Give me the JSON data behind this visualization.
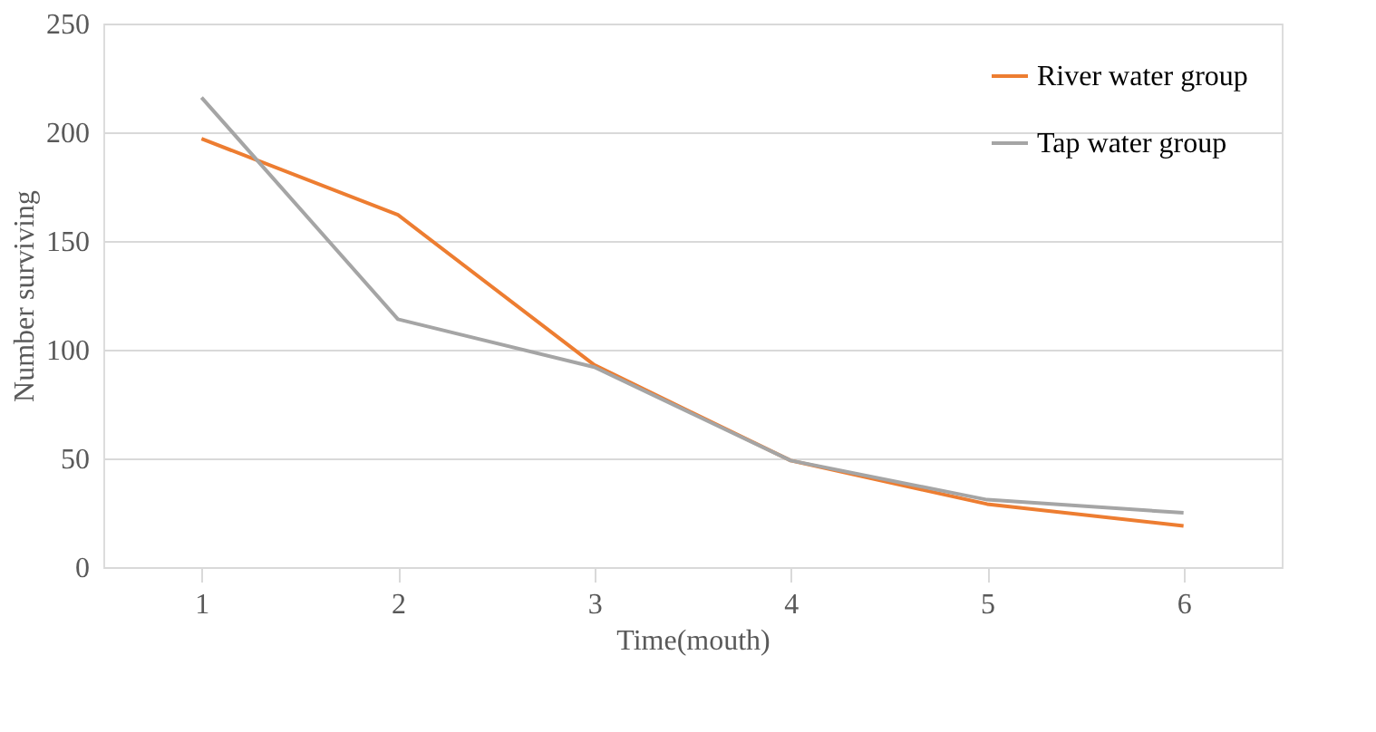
{
  "chart_data": {
    "type": "line",
    "xlabel": "Time(mouth)",
    "ylabel": "Number surviving",
    "categories": [
      "1",
      "2",
      "3",
      "4",
      "5",
      "6"
    ],
    "series": [
      {
        "name": "River water group",
        "color": "#ed7d31",
        "values": [
          197,
          162,
          93,
          49,
          29,
          19
        ]
      },
      {
        "name": "Tap water group",
        "color": "#a5a5a5",
        "values": [
          216,
          114,
          92,
          49,
          31,
          25
        ]
      }
    ],
    "ylim": [
      0,
      250
    ],
    "yticks": [
      0,
      50,
      100,
      150,
      200,
      250
    ],
    "grid": "y",
    "legend": "top right",
    "marker": "none",
    "line_style": "solid"
  }
}
